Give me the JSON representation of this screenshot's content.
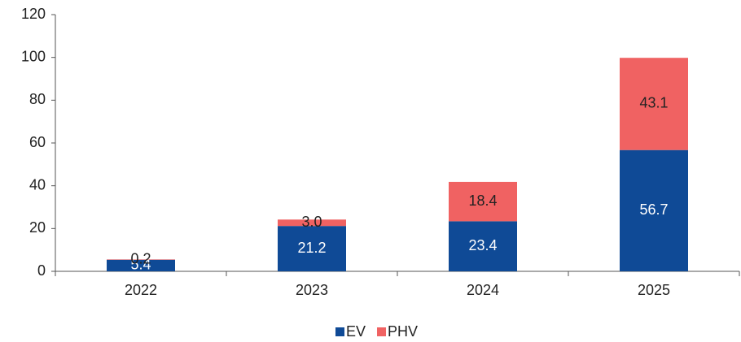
{
  "chart_data": {
    "type": "bar",
    "stacked": true,
    "categories": [
      "2022",
      "2023",
      "2024",
      "2025"
    ],
    "series": [
      {
        "name": "EV",
        "color": "#0f4a96",
        "label_color": "#ffffff",
        "values": [
          5.4,
          21.2,
          23.4,
          56.7
        ],
        "value_labels": [
          "5.4",
          "21.2",
          "23.4",
          "56.7"
        ]
      },
      {
        "name": "PHV",
        "color": "#f06262",
        "label_color": "#222222",
        "values": [
          0.2,
          3.0,
          18.4,
          43.1
        ],
        "value_labels": [
          "0.2",
          "3.0",
          "18.4",
          "43.1"
        ]
      }
    ],
    "ylim": [
      0,
      120
    ],
    "yticks": [
      0,
      20,
      40,
      60,
      80,
      100,
      120
    ],
    "grid": false,
    "legend": "bottom"
  }
}
